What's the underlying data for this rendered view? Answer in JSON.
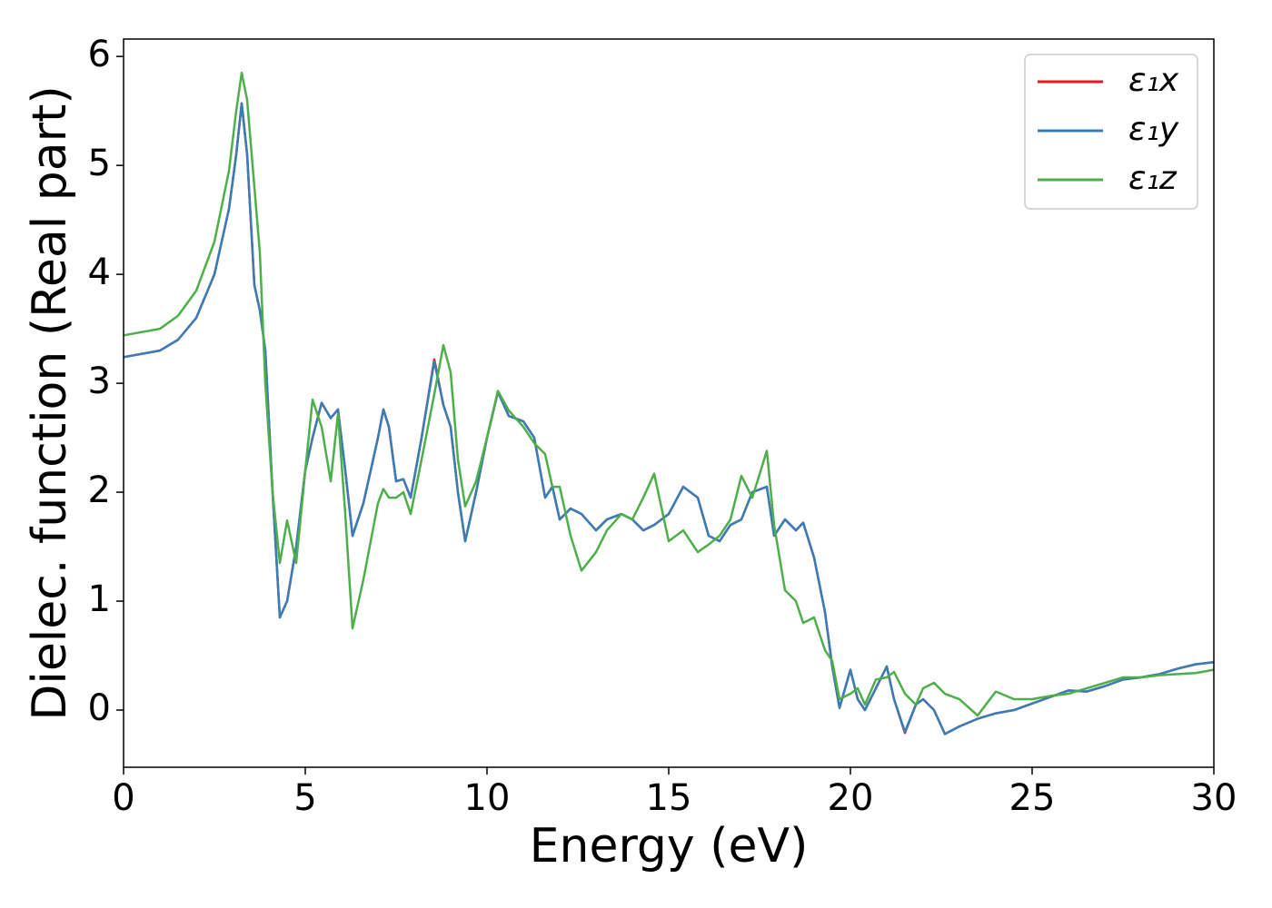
{
  "chart_data": {
    "type": "line",
    "xlabel": "Energy (eV)",
    "ylabel": "Dielec. function (Real part)",
    "xlim": [
      0,
      30
    ],
    "ylim": [
      -0.525,
      6.16
    ],
    "xticks": [
      0,
      5,
      10,
      15,
      20,
      25,
      30
    ],
    "yticks": [
      0,
      1,
      2,
      3,
      4,
      5,
      6
    ],
    "legend": "upper right",
    "x": [
      0,
      1,
      1.5,
      2,
      2.5,
      2.9,
      3.1,
      3.25,
      3.4,
      3.6,
      3.75,
      3.9,
      4.1,
      4.3,
      4.5,
      4.75,
      5.0,
      5.2,
      5.45,
      5.7,
      5.9,
      6.1,
      6.3,
      6.6,
      7.0,
      7.15,
      7.3,
      7.5,
      7.7,
      7.9,
      8.2,
      8.55,
      8.8,
      9.0,
      9.2,
      9.4,
      9.7,
      10.0,
      10.3,
      10.6,
      11.0,
      11.3,
      11.6,
      11.8,
      12.0,
      12.3,
      12.6,
      13.0,
      13.3,
      13.7,
      14.0,
      14.3,
      14.6,
      15.0,
      15.4,
      15.8,
      16.1,
      16.4,
      16.7,
      17.0,
      17.3,
      17.7,
      17.9,
      18.2,
      18.5,
      18.7,
      19.0,
      19.3,
      19.5,
      19.7,
      20.0,
      20.2,
      20.4,
      20.7,
      21.0,
      21.2,
      21.5,
      21.8,
      22.0,
      22.3,
      22.6,
      23.0,
      23.5,
      24.0,
      24.5,
      25.0,
      25.5,
      26.0,
      26.5,
      27.0,
      27.5,
      28.0,
      28.5,
      29.0,
      29.5,
      30
    ],
    "series": [
      {
        "name": "ε₁x",
        "color": "#e41a1c",
        "values": [
          3.24,
          3.3,
          3.4,
          3.6,
          4.0,
          4.6,
          5.1,
          5.57,
          5.1,
          3.9,
          3.67,
          3.3,
          2.0,
          0.85,
          1.0,
          1.5,
          2.2,
          2.5,
          2.82,
          2.68,
          2.76,
          2.2,
          1.6,
          1.9,
          2.5,
          2.76,
          2.6,
          2.1,
          2.12,
          1.95,
          2.5,
          3.22,
          2.8,
          2.6,
          2.0,
          1.55,
          2.0,
          2.5,
          2.92,
          2.7,
          2.65,
          2.5,
          1.95,
          2.05,
          1.75,
          1.85,
          1.8,
          1.65,
          1.75,
          1.8,
          1.75,
          1.65,
          1.7,
          1.8,
          2.05,
          1.95,
          1.6,
          1.55,
          1.7,
          1.75,
          2.0,
          2.05,
          1.6,
          1.75,
          1.65,
          1.72,
          1.4,
          0.9,
          0.4,
          0.02,
          0.37,
          0.1,
          0.0,
          0.2,
          0.4,
          0.1,
          -0.21,
          0.05,
          0.1,
          0.0,
          -0.22,
          -0.15,
          -0.08,
          -0.03,
          0.0,
          0.06,
          0.12,
          0.18,
          0.17,
          0.22,
          0.28,
          0.3,
          0.33,
          0.38,
          0.42,
          0.44
        ]
      },
      {
        "name": "ε₁y",
        "color": "#377eb8",
        "values": [
          3.24,
          3.3,
          3.4,
          3.6,
          4.0,
          4.6,
          5.1,
          5.57,
          5.1,
          3.9,
          3.67,
          3.3,
          2.0,
          0.85,
          1.0,
          1.5,
          2.2,
          2.5,
          2.82,
          2.68,
          2.76,
          2.2,
          1.6,
          1.9,
          2.5,
          2.76,
          2.6,
          2.1,
          2.12,
          1.95,
          2.5,
          3.2,
          2.8,
          2.6,
          2.0,
          1.55,
          2.0,
          2.5,
          2.92,
          2.7,
          2.65,
          2.5,
          1.95,
          2.05,
          1.75,
          1.85,
          1.8,
          1.65,
          1.75,
          1.8,
          1.75,
          1.65,
          1.7,
          1.8,
          2.05,
          1.95,
          1.6,
          1.55,
          1.7,
          1.75,
          2.0,
          2.05,
          1.6,
          1.75,
          1.65,
          1.72,
          1.4,
          0.9,
          0.4,
          0.02,
          0.37,
          0.1,
          0.0,
          0.2,
          0.4,
          0.1,
          -0.2,
          0.05,
          0.1,
          0.0,
          -0.22,
          -0.15,
          -0.08,
          -0.03,
          0.0,
          0.06,
          0.12,
          0.18,
          0.17,
          0.22,
          0.28,
          0.3,
          0.33,
          0.38,
          0.42,
          0.44
        ]
      },
      {
        "name": "ε₁z",
        "color": "#4daf4a",
        "values": [
          3.44,
          3.5,
          3.62,
          3.85,
          4.3,
          4.95,
          5.5,
          5.85,
          5.6,
          4.8,
          4.2,
          3.0,
          2.0,
          1.35,
          1.74,
          1.35,
          2.2,
          2.85,
          2.6,
          2.1,
          2.72,
          1.8,
          0.75,
          1.2,
          1.9,
          2.03,
          1.95,
          1.95,
          2.0,
          1.8,
          2.3,
          2.9,
          3.35,
          3.1,
          2.3,
          1.87,
          2.1,
          2.5,
          2.93,
          2.75,
          2.6,
          2.45,
          2.35,
          2.05,
          2.05,
          1.6,
          1.28,
          1.45,
          1.65,
          1.8,
          1.75,
          1.95,
          2.17,
          1.55,
          1.65,
          1.45,
          1.52,
          1.6,
          1.75,
          2.15,
          1.95,
          2.38,
          1.7,
          1.1,
          1.0,
          0.8,
          0.85,
          0.55,
          0.45,
          0.1,
          0.15,
          0.2,
          0.05,
          0.28,
          0.3,
          0.35,
          0.15,
          0.05,
          0.2,
          0.25,
          0.15,
          0.1,
          -0.05,
          0.17,
          0.1,
          0.1,
          0.13,
          0.15,
          0.2,
          0.25,
          0.3,
          0.3,
          0.32,
          0.33,
          0.34,
          0.37
        ]
      }
    ]
  }
}
